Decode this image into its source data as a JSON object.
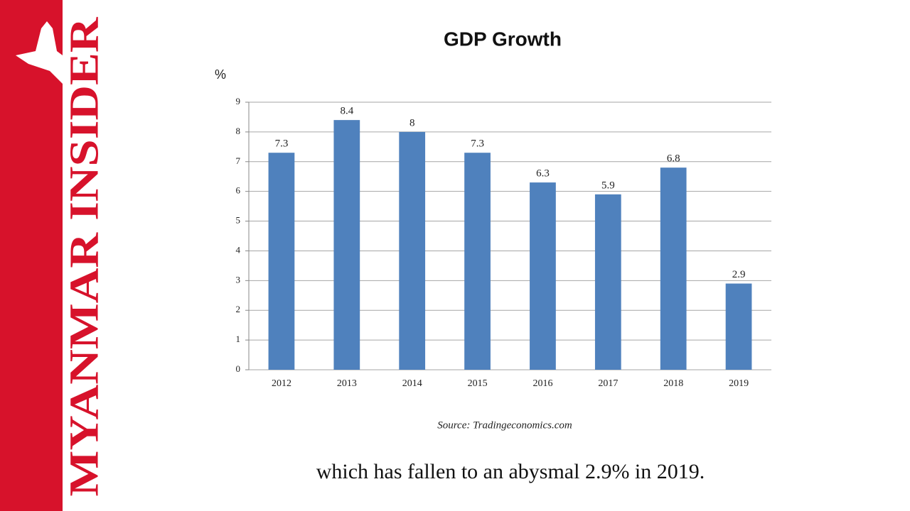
{
  "brand": "MYANMAR INSIDER",
  "caption": "which has fallen to an abysmal 2.9% in 2019.",
  "chart_data": {
    "type": "bar",
    "title": "GDP Growth",
    "y_label": "%",
    "categories": [
      "2012",
      "2013",
      "2014",
      "2015",
      "2016",
      "2017",
      "2018",
      "2019"
    ],
    "values": [
      7.3,
      8.4,
      8,
      7.3,
      6.3,
      5.9,
      6.8,
      2.9
    ],
    "color": "#4f81bd",
    "ylim": [
      0,
      9
    ],
    "yticks": [
      0,
      1,
      2,
      3,
      4,
      5,
      6,
      7,
      8,
      9
    ],
    "grid": true,
    "source": "Source: Tradingeconomics.com"
  }
}
